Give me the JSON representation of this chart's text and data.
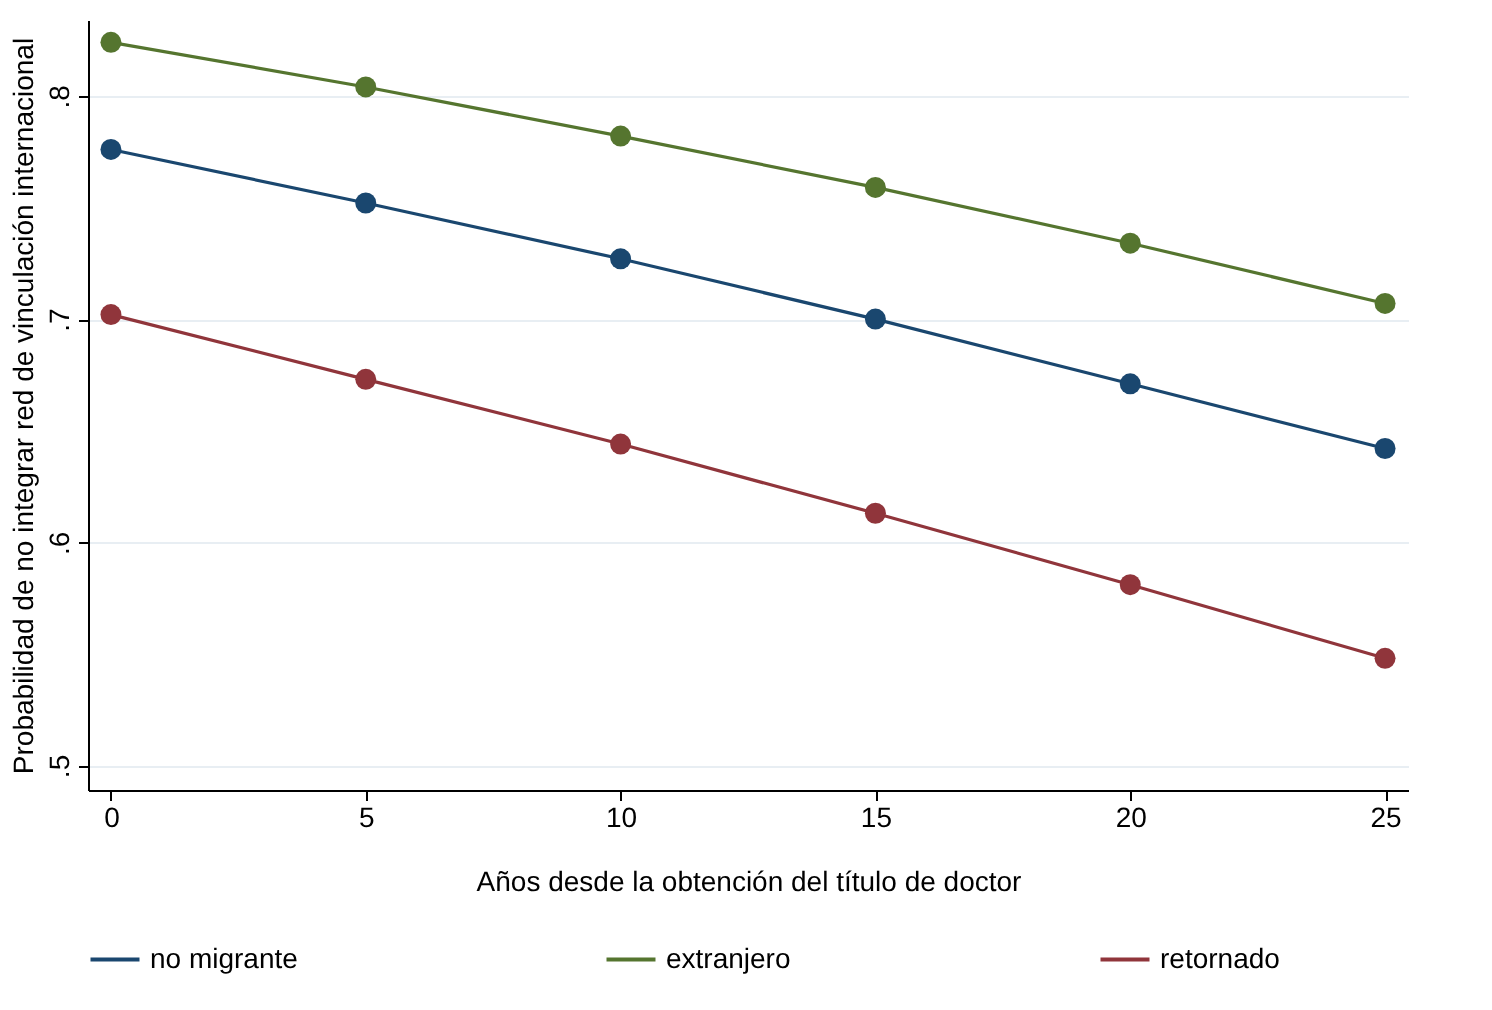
{
  "chart_data": {
    "type": "line",
    "xlabel": "Años desde la obtención del título de doctor",
    "ylabel": "Probabilidad de no integrar red de vinculación internacional",
    "x": [
      0,
      5,
      10,
      15,
      20,
      25
    ],
    "series": [
      {
        "name": "no migrante",
        "color": "#1a476f",
        "values": [
          0.776,
          0.752,
          0.727,
          0.7,
          0.671,
          0.642
        ]
      },
      {
        "name": "extranjero",
        "color": "#55752f",
        "values": [
          0.824,
          0.804,
          0.782,
          0.759,
          0.734,
          0.707
        ]
      },
      {
        "name": "retornado",
        "color": "#90353b",
        "values": [
          0.702,
          0.673,
          0.644,
          0.613,
          0.581,
          0.548
        ]
      }
    ],
    "xlim": [
      -0.45,
      25.45
    ],
    "ylim": [
      0.489,
      0.834
    ],
    "xticks": [
      0,
      5,
      10,
      15,
      20,
      25
    ],
    "yticks": [
      {
        "value": 0.5,
        "label": ".5"
      },
      {
        "value": 0.6,
        "label": ".6"
      },
      {
        "value": 0.7,
        "label": ".7"
      },
      {
        "value": 0.8,
        "label": ".8"
      }
    ],
    "grid": "y",
    "legend": "bottom",
    "marker": "circle",
    "line_style": "solid"
  }
}
